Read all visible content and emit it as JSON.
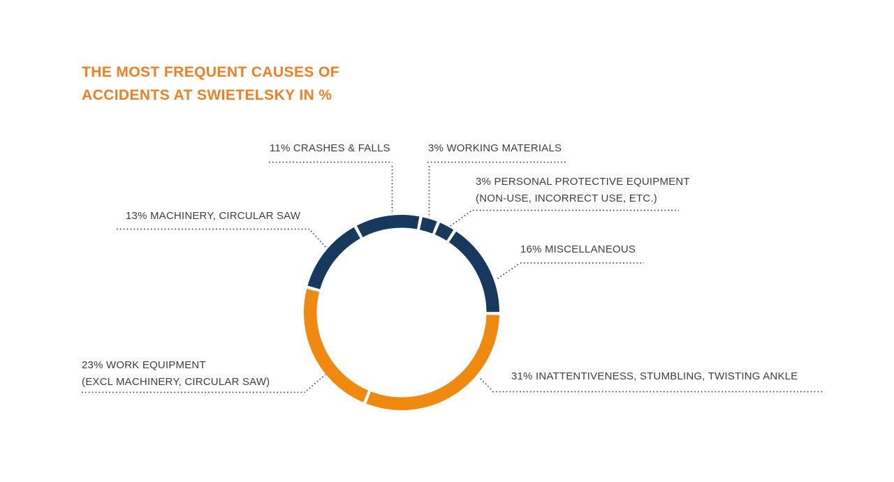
{
  "title": {
    "line1": "THE MOST FREQUENT CAUSES OF",
    "line2": "ACCIDENTS AT SWIETELSKY IN %"
  },
  "chart_data": {
    "type": "pie",
    "subtype": "donut-ring",
    "title": "THE MOST FREQUENT CAUSES OF ACCIDENTS AT SWIETELSKY IN %",
    "unit": "%",
    "start_angle_deg": 285,
    "legend_position": "callout-labels",
    "segments": [
      {
        "label": "MACHINERY, CIRCULAR SAW",
        "value": 13,
        "color": "#17395d"
      },
      {
        "label": "CRASHES & FALLS",
        "value": 11,
        "color": "#17395d"
      },
      {
        "label": "WORKING MATERIALS",
        "value": 3,
        "color": "#17395d"
      },
      {
        "label": "PERSONAL PROTECTIVE EQUIPMENT (NON-USE, INCORRECT USE, ETC.)",
        "value": 3,
        "color": "#17395d"
      },
      {
        "label": "MISCELLANEOUS",
        "value": 16,
        "color": "#17395d"
      },
      {
        "label": "INATTENTIVENESS, STUMBLING, TWISTING ANKLE",
        "value": 31,
        "color": "#f0890f"
      },
      {
        "label": "WORK EQUIPMENT (EXCL MACHINERY, CIRCULAR SAW)",
        "value": 23,
        "color": "#f0890f"
      }
    ]
  },
  "labels": {
    "crashes": {
      "text": "11% CRASHES & FALLS"
    },
    "materials": {
      "text": "3% WORKING MATERIALS"
    },
    "ppe": {
      "line1": "3% PERSONAL PROTECTIVE EQUIPMENT",
      "line2": "(NON-USE, INCORRECT USE, ETC.)"
    },
    "machinery": {
      "text": "13% MACHINERY, CIRCULAR SAW"
    },
    "misc": {
      "text": "16% MISCELLANEOUS"
    },
    "work": {
      "line1": "23% WORK EQUIPMENT",
      "line2": "(EXCL MACHINERY, CIRCULAR SAW)"
    },
    "inattentiveness": {
      "text": "31% INATTENTIVENESS, STUMBLING, TWISTING ANKLE"
    }
  },
  "colors": {
    "navy": "#17395d",
    "orange": "#f0890f",
    "title_orange": "#ee7f22",
    "label_text": "#3d3d3d",
    "leader_dots": "#4a4a4a",
    "background": "#ffffff"
  }
}
